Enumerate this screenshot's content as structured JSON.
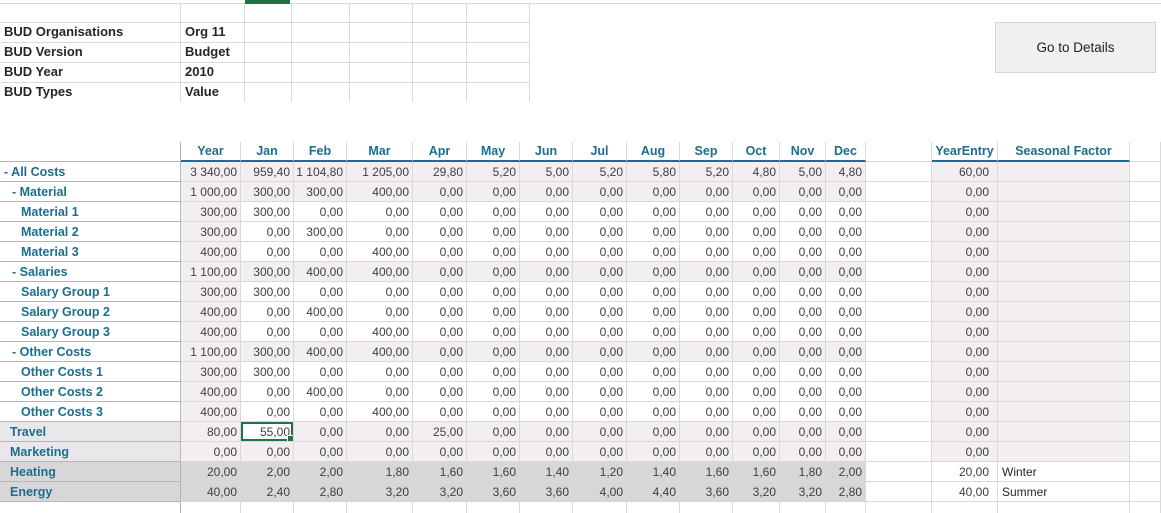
{
  "info": {
    "rows": [
      {
        "label": "BUD Organisations",
        "value": "Org 11"
      },
      {
        "label": "BUD Version",
        "value": "Budget"
      },
      {
        "label": "BUD Year",
        "value": "2010"
      },
      {
        "label": "BUD Types",
        "value": "Value"
      }
    ]
  },
  "button": {
    "label": "Go to Details"
  },
  "table": {
    "columns": [
      "Year",
      "Jan",
      "Feb",
      "Mar",
      "Apr",
      "May",
      "Jun",
      "Jul",
      "Aug",
      "Sep",
      "Oct",
      "Nov",
      "Dec"
    ],
    "extra_columns": [
      "YearEntry",
      "Seasonal Factor"
    ],
    "rows": [
      {
        "label": "- All Costs",
        "level": 0,
        "style": "parent",
        "values": [
          "3 340,00",
          "959,40",
          "1 104,80",
          "1 205,00",
          "29,80",
          "5,20",
          "5,00",
          "5,20",
          "5,80",
          "5,20",
          "4,80",
          "5,00",
          "4,80"
        ],
        "year_entry": "60,00",
        "seasonal": ""
      },
      {
        "label": "- Material",
        "level": 1,
        "style": "parent",
        "values": [
          "1 000,00",
          "300,00",
          "300,00",
          "400,00",
          "0,00",
          "0,00",
          "0,00",
          "0,00",
          "0,00",
          "0,00",
          "0,00",
          "0,00",
          "0,00"
        ],
        "year_entry": "0,00",
        "seasonal": ""
      },
      {
        "label": "Material 1",
        "level": 2,
        "style": "child",
        "values": [
          "300,00",
          "300,00",
          "0,00",
          "0,00",
          "0,00",
          "0,00",
          "0,00",
          "0,00",
          "0,00",
          "0,00",
          "0,00",
          "0,00",
          "0,00"
        ],
        "year_entry": "0,00",
        "seasonal": ""
      },
      {
        "label": "Material 2",
        "level": 2,
        "style": "child",
        "values": [
          "300,00",
          "0,00",
          "300,00",
          "0,00",
          "0,00",
          "0,00",
          "0,00",
          "0,00",
          "0,00",
          "0,00",
          "0,00",
          "0,00",
          "0,00"
        ],
        "year_entry": "0,00",
        "seasonal": ""
      },
      {
        "label": "Material 3",
        "level": 2,
        "style": "child",
        "values": [
          "400,00",
          "0,00",
          "0,00",
          "400,00",
          "0,00",
          "0,00",
          "0,00",
          "0,00",
          "0,00",
          "0,00",
          "0,00",
          "0,00",
          "0,00"
        ],
        "year_entry": "0,00",
        "seasonal": ""
      },
      {
        "label": "- Salaries",
        "level": 1,
        "style": "parent",
        "values": [
          "1 100,00",
          "300,00",
          "400,00",
          "400,00",
          "0,00",
          "0,00",
          "0,00",
          "0,00",
          "0,00",
          "0,00",
          "0,00",
          "0,00",
          "0,00"
        ],
        "year_entry": "0,00",
        "seasonal": ""
      },
      {
        "label": "Salary Group 1",
        "level": 2,
        "style": "child",
        "values": [
          "300,00",
          "300,00",
          "0,00",
          "0,00",
          "0,00",
          "0,00",
          "0,00",
          "0,00",
          "0,00",
          "0,00",
          "0,00",
          "0,00",
          "0,00"
        ],
        "year_entry": "0,00",
        "seasonal": ""
      },
      {
        "label": "Salary Group 2",
        "level": 2,
        "style": "child",
        "values": [
          "400,00",
          "0,00",
          "400,00",
          "0,00",
          "0,00",
          "0,00",
          "0,00",
          "0,00",
          "0,00",
          "0,00",
          "0,00",
          "0,00",
          "0,00"
        ],
        "year_entry": "0,00",
        "seasonal": ""
      },
      {
        "label": "Salary Group 3",
        "level": 2,
        "style": "child",
        "values": [
          "400,00",
          "0,00",
          "0,00",
          "400,00",
          "0,00",
          "0,00",
          "0,00",
          "0,00",
          "0,00",
          "0,00",
          "0,00",
          "0,00",
          "0,00"
        ],
        "year_entry": "0,00",
        "seasonal": ""
      },
      {
        "label": "- Other Costs",
        "level": 1,
        "style": "parent",
        "values": [
          "1 100,00",
          "300,00",
          "400,00",
          "400,00",
          "0,00",
          "0,00",
          "0,00",
          "0,00",
          "0,00",
          "0,00",
          "0,00",
          "0,00",
          "0,00"
        ],
        "year_entry": "0,00",
        "seasonal": ""
      },
      {
        "label": "Other Costs 1",
        "level": 2,
        "style": "child",
        "values": [
          "300,00",
          "300,00",
          "0,00",
          "0,00",
          "0,00",
          "0,00",
          "0,00",
          "0,00",
          "0,00",
          "0,00",
          "0,00",
          "0,00",
          "0,00"
        ],
        "year_entry": "0,00",
        "seasonal": ""
      },
      {
        "label": "Other Costs 2",
        "level": 2,
        "style": "child",
        "values": [
          "400,00",
          "0,00",
          "400,00",
          "0,00",
          "0,00",
          "0,00",
          "0,00",
          "0,00",
          "0,00",
          "0,00",
          "0,00",
          "0,00",
          "0,00"
        ],
        "year_entry": "0,00",
        "seasonal": ""
      },
      {
        "label": "Other Costs 3",
        "level": 2,
        "style": "child",
        "values": [
          "400,00",
          "0,00",
          "0,00",
          "400,00",
          "0,00",
          "0,00",
          "0,00",
          "0,00",
          "0,00",
          "0,00",
          "0,00",
          "0,00",
          "0,00"
        ],
        "year_entry": "0,00",
        "seasonal": ""
      },
      {
        "label": "Travel",
        "level": 0,
        "style": "simple",
        "selected": 1,
        "values": [
          "80,00",
          "55,00",
          "0,00",
          "0,00",
          "25,00",
          "0,00",
          "0,00",
          "0,00",
          "0,00",
          "0,00",
          "0,00",
          "0,00",
          "0,00"
        ],
        "year_entry": "0,00",
        "seasonal": ""
      },
      {
        "label": "Marketing",
        "level": 0,
        "style": "simple",
        "values": [
          "0,00",
          "0,00",
          "0,00",
          "0,00",
          "0,00",
          "0,00",
          "0,00",
          "0,00",
          "0,00",
          "0,00",
          "0,00",
          "0,00",
          "0,00"
        ],
        "year_entry": "0,00",
        "seasonal": ""
      },
      {
        "label": "Heating",
        "level": 0,
        "style": "season",
        "values": [
          "20,00",
          "2,00",
          "2,00",
          "1,80",
          "1,60",
          "1,60",
          "1,40",
          "1,20",
          "1,40",
          "1,60",
          "1,60",
          "1,80",
          "2,00"
        ],
        "year_entry": "20,00",
        "seasonal": "Winter"
      },
      {
        "label": "Energy",
        "level": 0,
        "style": "season",
        "values": [
          "40,00",
          "2,40",
          "2,80",
          "3,20",
          "3,20",
          "3,60",
          "3,60",
          "4,00",
          "4,40",
          "3,60",
          "3,20",
          "3,20",
          "2,80"
        ],
        "year_entry": "40,00",
        "seasonal": "Summer"
      }
    ]
  },
  "selection": {
    "row": "Travel",
    "column": "Jan",
    "value": "55,00"
  },
  "colors": {
    "accent": "#1c6e8e",
    "selection": "#217346",
    "cell_pink": "#f3eef2",
    "row_grey": "#d9d6d9",
    "label_grey": "#eae7ea",
    "grid": "#d9d9d9",
    "label_border": "#b8b5b8",
    "number": "#3f3f3f",
    "text": "#262626",
    "button_bg": "#f2eff2",
    "button_border": "#d7d3d7"
  }
}
